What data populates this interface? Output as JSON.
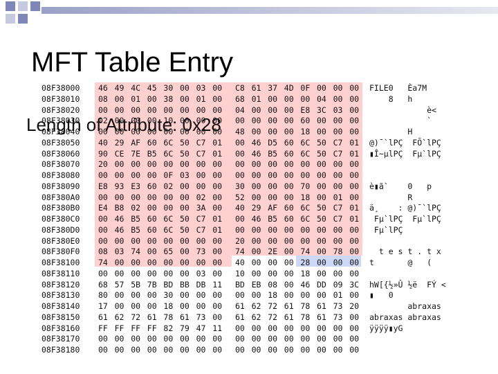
{
  "title": "MFT Table Entry",
  "callout": "Length of Attribute: 0x28",
  "rows": [
    {
      "address": "08F38000",
      "hex": [
        "46",
        "49",
        "4C",
        "45",
        "30",
        "00",
        "03",
        "00",
        "C8",
        "61",
        "37",
        "4D",
        "0F",
        "00",
        "00",
        "00"
      ],
      "ascii": "FILE0   Èa7M"
    },
    {
      "address": "08F38010",
      "hex": [
        "08",
        "00",
        "01",
        "00",
        "38",
        "00",
        "01",
        "00",
        "68",
        "01",
        "00",
        "00",
        "00",
        "04",
        "00",
        "00"
      ],
      "ascii": "    8   h"
    },
    {
      "address": "08F38020",
      "hex": [
        "00",
        "00",
        "00",
        "00",
        "00",
        "00",
        "00",
        "00",
        "04",
        "00",
        "00",
        "00",
        "E8",
        "3C",
        "03",
        "00"
      ],
      "ascii": "            è<"
    },
    {
      "address": "08F38030",
      "hex": [
        "02",
        "00",
        "00",
        "00",
        "10",
        "00",
        "00",
        "00",
        "00",
        "00",
        "00",
        "00",
        "60",
        "00",
        "00",
        "00"
      ],
      "ascii": "            `"
    },
    {
      "address": "08F38040",
      "hex": [
        "00",
        "00",
        "00",
        "00",
        "00",
        "00",
        "00",
        "00",
        "48",
        "00",
        "00",
        "00",
        "18",
        "00",
        "00",
        "00"
      ],
      "ascii": "        H"
    },
    {
      "address": "08F38050",
      "hex": [
        "40",
        "29",
        "AF",
        "60",
        "6C",
        "50",
        "C7",
        "01",
        "00",
        "46",
        "D5",
        "60",
        "6C",
        "50",
        "C7",
        "01"
      ],
      "ascii": "@)¯`lPÇ  FÕ`lPÇ"
    },
    {
      "address": "08F38060",
      "hex": [
        "90",
        "CE",
        "7E",
        "B5",
        "6C",
        "50",
        "C7",
        "01",
        "00",
        "46",
        "B5",
        "60",
        "6C",
        "50",
        "C7",
        "01"
      ],
      "ascii": "▮Î~µlPÇ  Fµ`lPÇ"
    },
    {
      "address": "08F38070",
      "hex": [
        "20",
        "00",
        "00",
        "00",
        "00",
        "00",
        "00",
        "00",
        "00",
        "00",
        "00",
        "00",
        "00",
        "00",
        "00",
        "00"
      ],
      "ascii": ""
    },
    {
      "address": "08F38080",
      "hex": [
        "00",
        "00",
        "00",
        "00",
        "0F",
        "03",
        "00",
        "00",
        "00",
        "00",
        "00",
        "00",
        "00",
        "00",
        "00",
        "00"
      ],
      "ascii": ""
    },
    {
      "address": "08F38090",
      "hex": [
        "E8",
        "93",
        "E3",
        "60",
        "02",
        "00",
        "00",
        "00",
        "30",
        "00",
        "00",
        "00",
        "70",
        "00",
        "00",
        "00"
      ],
      "ascii": "è▮ã`    0   p"
    },
    {
      "address": "08F380A0",
      "hex": [
        "00",
        "00",
        "00",
        "00",
        "00",
        "00",
        "02",
        "00",
        "52",
        "00",
        "00",
        "00",
        "18",
        "00",
        "01",
        "00"
      ],
      "ascii": "        R"
    },
    {
      "address": "08F380B0",
      "hex": [
        "E4",
        "B8",
        "02",
        "00",
        "00",
        "00",
        "3A",
        "00",
        "40",
        "29",
        "AF",
        "60",
        "6C",
        "50",
        "C7",
        "01"
      ],
      "ascii": "ä¸    : @)¯`lPÇ"
    },
    {
      "address": "08F380C0",
      "hex": [
        "00",
        "46",
        "B5",
        "60",
        "6C",
        "50",
        "C7",
        "01",
        "00",
        "46",
        "B5",
        "60",
        "6C",
        "50",
        "C7",
        "01"
      ],
      "ascii": " Fµ`lPÇ  Fµ`lPÇ"
    },
    {
      "address": "08F380D0",
      "hex": [
        "00",
        "46",
        "B5",
        "60",
        "6C",
        "50",
        "C7",
        "01",
        "00",
        "00",
        "00",
        "00",
        "00",
        "00",
        "00",
        "00"
      ],
      "ascii": " Fµ`lPÇ"
    },
    {
      "address": "08F380E0",
      "hex": [
        "00",
        "00",
        "00",
        "00",
        "00",
        "00",
        "00",
        "00",
        "20",
        "00",
        "00",
        "00",
        "00",
        "00",
        "00",
        "00"
      ],
      "ascii": ""
    },
    {
      "address": "08F380F0",
      "hex": [
        "08",
        "03",
        "74",
        "00",
        "65",
        "00",
        "73",
        "00",
        "74",
        "00",
        "2E",
        "00",
        "74",
        "00",
        "78",
        "00"
      ],
      "ascii": "  t e s t . t x"
    },
    {
      "address": "08F38100",
      "hex": [
        "74",
        "00",
        "00",
        "00",
        "00",
        "00",
        "00",
        "00",
        "40",
        "00",
        "00",
        "00",
        "28",
        "00",
        "00",
        "00"
      ],
      "ascii": "t       @   ("
    },
    {
      "address": "08F38110",
      "hex": [
        "00",
        "00",
        "00",
        "00",
        "00",
        "00",
        "03",
        "00",
        "10",
        "00",
        "00",
        "00",
        "18",
        "00",
        "00",
        "00"
      ],
      "ascii": ""
    },
    {
      "address": "08F38120",
      "hex": [
        "68",
        "57",
        "5B",
        "7B",
        "BD",
        "BB",
        "DB",
        "11",
        "BD",
        "EB",
        "08",
        "00",
        "46",
        "DD",
        "09",
        "3C"
      ],
      "ascii": "hW[{½»Û ½ë  FÝ <"
    },
    {
      "address": "08F38130",
      "hex": [
        "80",
        "00",
        "00",
        "00",
        "30",
        "00",
        "00",
        "00",
        "00",
        "00",
        "18",
        "00",
        "00",
        "00",
        "01",
        "00"
      ],
      "ascii": "▮   0"
    },
    {
      "address": "08F38140",
      "hex": [
        "17",
        "00",
        "00",
        "00",
        "18",
        "00",
        "00",
        "00",
        "61",
        "62",
        "72",
        "61",
        "78",
        "61",
        "73",
        "20"
      ],
      "ascii": "        abraxas"
    },
    {
      "address": "08F38150",
      "hex": [
        "61",
        "62",
        "72",
        "61",
        "78",
        "61",
        "73",
        "00",
        "61",
        "62",
        "72",
        "61",
        "78",
        "61",
        "73",
        "00"
      ],
      "ascii": "abraxas abraxas"
    },
    {
      "address": "08F38160",
      "hex": [
        "FF",
        "FF",
        "FF",
        "FF",
        "82",
        "79",
        "47",
        "11",
        "00",
        "00",
        "00",
        "00",
        "00",
        "00",
        "00",
        "00"
      ],
      "ascii": "ÿÿÿÿ▮yG"
    },
    {
      "address": "08F38170",
      "hex": [
        "00",
        "00",
        "00",
        "00",
        "00",
        "00",
        "00",
        "00",
        "00",
        "00",
        "00",
        "00",
        "00",
        "00",
        "00",
        "00"
      ],
      "ascii": ""
    },
    {
      "address": "08F38180",
      "hex": [
        "00",
        "00",
        "00",
        "00",
        "00",
        "00",
        "00",
        "00",
        "00",
        "00",
        "00",
        "00",
        "00",
        "00",
        "00",
        "00"
      ],
      "ascii": ""
    }
  ]
}
